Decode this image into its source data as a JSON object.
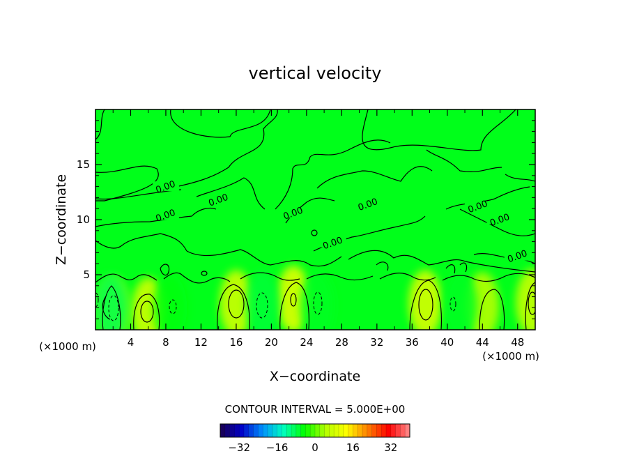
{
  "chart_data": {
    "type": "heatmap",
    "title": "vertical velocity",
    "xlabel": "X−coordinate",
    "ylabel": "Z−coordinate",
    "x_unit_left": "(×1000 m)",
    "x_unit_right": "(×1000 m)",
    "xlim": [
      0,
      50
    ],
    "ylim": [
      0,
      20
    ],
    "x_ticks": [
      {
        "value": 4,
        "label": "4"
      },
      {
        "value": 8,
        "label": "8"
      },
      {
        "value": 12,
        "label": "12"
      },
      {
        "value": 16,
        "label": "16"
      },
      {
        "value": 20,
        "label": "20"
      },
      {
        "value": 24,
        "label": "24"
      },
      {
        "value": 28,
        "label": "28"
      },
      {
        "value": 32,
        "label": "32"
      },
      {
        "value": 36,
        "label": "36"
      },
      {
        "value": 40,
        "label": "40"
      },
      {
        "value": 44,
        "label": "44"
      },
      {
        "value": 48,
        "label": "48"
      }
    ],
    "y_ticks": [
      {
        "value": 5,
        "label": "5"
      },
      {
        "value": 10,
        "label": "10"
      },
      {
        "value": 15,
        "label": "15"
      }
    ],
    "contour_interval_text": "CONTOUR INTERVAL = 5.000E+00",
    "contour_labels": [
      {
        "x": 8,
        "z": 12.9,
        "text": "0.00"
      },
      {
        "x": 8,
        "z": 10.3,
        "text": "0.00"
      },
      {
        "x": 14,
        "z": 11.7,
        "text": "0.00"
      },
      {
        "x": 22.5,
        "z": 10.5,
        "text": "0.00"
      },
      {
        "x": 31,
        "z": 11.3,
        "text": "0.00"
      },
      {
        "x": 27,
        "z": 7.8,
        "text": "0.00"
      },
      {
        "x": 43.5,
        "z": 11.1,
        "text": "0.00"
      },
      {
        "x": 46,
        "z": 9.9,
        "text": "0.00"
      },
      {
        "x": 48,
        "z": 6.6,
        "text": "0.00"
      }
    ],
    "updrafts": [
      {
        "x": 2.0,
        "z": 1.8,
        "w": 4
      },
      {
        "x": 6.0,
        "z": 1.7,
        "w": 9
      },
      {
        "x": 16.0,
        "z": 2.4,
        "w": 9
      },
      {
        "x": 22.5,
        "z": 2.8,
        "w": 11
      },
      {
        "x": 37.5,
        "z": 2.4,
        "w": 10
      },
      {
        "x": 44.0,
        "z": 2.2,
        "w": 6
      },
      {
        "x": 49.7,
        "z": 2.5,
        "w": 8
      }
    ],
    "downdrafts": [
      {
        "x": 1.8,
        "z": 2.0,
        "w": -8
      },
      {
        "x": 8.5,
        "z": 2.0,
        "w": -5
      },
      {
        "x": 19.0,
        "z": 2.3,
        "w": -7
      },
      {
        "x": 25.2,
        "z": 2.2,
        "w": -6
      },
      {
        "x": 41.5,
        "z": 2.2,
        "w": -6
      }
    ],
    "colorbar": {
      "min": -40,
      "max": 40,
      "ticks": [
        {
          "value": -32,
          "label": "−32"
        },
        {
          "value": -16,
          "label": "−16"
        },
        {
          "value": 0,
          "label": "0"
        },
        {
          "value": 16,
          "label": "16"
        },
        {
          "value": 32,
          "label": "32"
        }
      ],
      "stops": [
        "#1a004d",
        "#0000c8",
        "#0090ff",
        "#00ffc0",
        "#00ff00",
        "#b4ff00",
        "#ffff00",
        "#ff8000",
        "#ff0000",
        "#ff9090"
      ]
    },
    "field_color": "#00ff1a",
    "grid": false,
    "legend": "bottom"
  }
}
